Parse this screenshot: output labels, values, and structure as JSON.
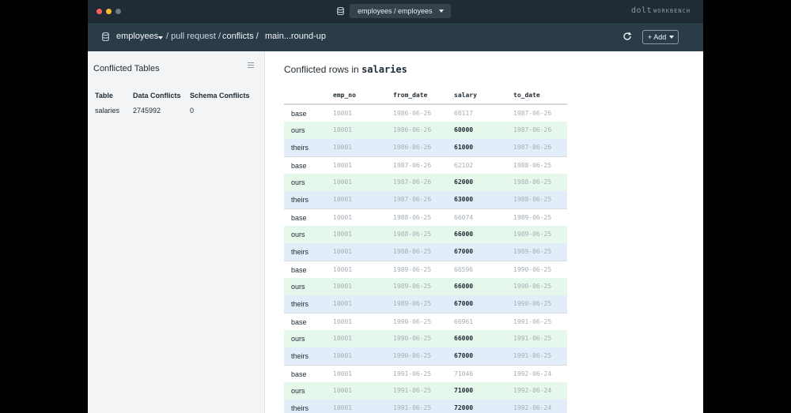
{
  "window": {
    "db_selector": "employees / employees",
    "brand_main": "dolt",
    "brand_sub": "WORKBENCH"
  },
  "nav": {
    "crumb_db": "employees",
    "crumb_pull_request": "/ pull request /",
    "crumb_conflicts": "conflicts /",
    "crumb_branch": "main...round-up",
    "add_label": "+ Add"
  },
  "sidebar": {
    "title": "Conflicted Tables",
    "headers": [
      "Table",
      "Data Conflicts",
      "Schema Conflicts"
    ],
    "rows": [
      [
        "salaries",
        "2745992",
        "0"
      ]
    ]
  },
  "main": {
    "title_prefix": "Conflicted rows in",
    "table_name": "salaries",
    "columns": [
      "emp_no",
      "from_date",
      "salary",
      "to_date"
    ],
    "rows": [
      {
        "kind": "base",
        "emp_no": "10001",
        "from_date": "1986-06-26",
        "salary": "60117",
        "to_date": "1987-06-26"
      },
      {
        "kind": "ours",
        "emp_no": "10001",
        "from_date": "1986-06-26",
        "salary": "60000",
        "to_date": "1987-06-26"
      },
      {
        "kind": "theirs",
        "emp_no": "10001",
        "from_date": "1986-06-26",
        "salary": "61000",
        "to_date": "1987-06-26"
      },
      {
        "kind": "base",
        "emp_no": "10001",
        "from_date": "1987-06-26",
        "salary": "62102",
        "to_date": "1988-06-25"
      },
      {
        "kind": "ours",
        "emp_no": "10001",
        "from_date": "1987-06-26",
        "salary": "62000",
        "to_date": "1988-06-25"
      },
      {
        "kind": "theirs",
        "emp_no": "10001",
        "from_date": "1987-06-26",
        "salary": "63000",
        "to_date": "1988-06-25"
      },
      {
        "kind": "base",
        "emp_no": "10001",
        "from_date": "1988-06-25",
        "salary": "66074",
        "to_date": "1989-06-25"
      },
      {
        "kind": "ours",
        "emp_no": "10001",
        "from_date": "1988-06-25",
        "salary": "66000",
        "to_date": "1989-06-25"
      },
      {
        "kind": "theirs",
        "emp_no": "10001",
        "from_date": "1988-06-25",
        "salary": "67000",
        "to_date": "1989-06-25"
      },
      {
        "kind": "base",
        "emp_no": "10001",
        "from_date": "1989-06-25",
        "salary": "66596",
        "to_date": "1990-06-25"
      },
      {
        "kind": "ours",
        "emp_no": "10001",
        "from_date": "1989-06-25",
        "salary": "66000",
        "to_date": "1990-06-25"
      },
      {
        "kind": "theirs",
        "emp_no": "10001",
        "from_date": "1989-06-25",
        "salary": "67000",
        "to_date": "1990-06-25"
      },
      {
        "kind": "base",
        "emp_no": "10001",
        "from_date": "1990-06-25",
        "salary": "66961",
        "to_date": "1991-06-25"
      },
      {
        "kind": "ours",
        "emp_no": "10001",
        "from_date": "1990-06-25",
        "salary": "66000",
        "to_date": "1991-06-25"
      },
      {
        "kind": "theirs",
        "emp_no": "10001",
        "from_date": "1990-06-25",
        "salary": "67000",
        "to_date": "1991-06-25"
      },
      {
        "kind": "base",
        "emp_no": "10001",
        "from_date": "1991-06-25",
        "salary": "71046",
        "to_date": "1992-06-24"
      },
      {
        "kind": "ours",
        "emp_no": "10001",
        "from_date": "1991-06-25",
        "salary": "71000",
        "to_date": "1992-06-24"
      },
      {
        "kind": "theirs",
        "emp_no": "10001",
        "from_date": "1991-06-25",
        "salary": "72000",
        "to_date": "1992-06-24"
      }
    ]
  },
  "colors": {
    "titlebar": "#202c35",
    "navbar": "#2b3c49",
    "ours_row": "#e6f7ec",
    "theirs_row": "#e3edf9"
  },
  "icons": [
    "database-icon",
    "refresh-icon",
    "menu-icon",
    "chevron-down-icon"
  ]
}
